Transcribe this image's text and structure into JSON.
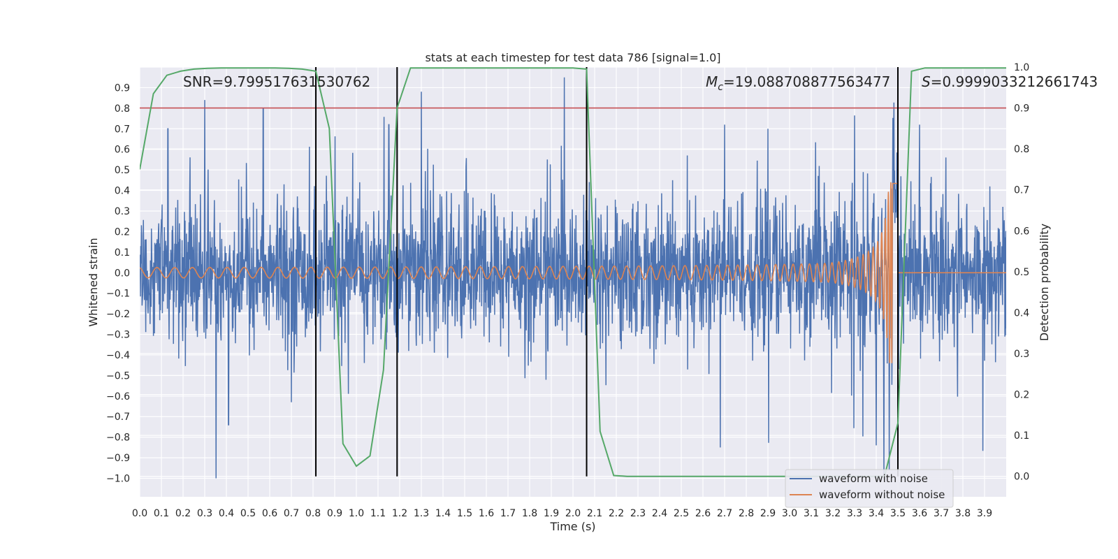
{
  "chart_data": {
    "type": "line",
    "title": "stats at each timestep for test data 786 [signal=1.0]",
    "xlabel": "Time (s)",
    "ylabel": "Whitened strain",
    "y2label": "Detection probability",
    "xlim": [
      0.0,
      4.0
    ],
    "ylim": [
      -1.09,
      1.0
    ],
    "y2lim": [
      -0.05,
      1.0
    ],
    "xticks": [
      0.0,
      0.1,
      0.2,
      0.3,
      0.4,
      0.5,
      0.6,
      0.7,
      0.8,
      0.9,
      1.0,
      1.1,
      1.2,
      1.3,
      1.4,
      1.5,
      1.6,
      1.7,
      1.8,
      1.9,
      2.0,
      2.1,
      2.2,
      2.3,
      2.4,
      2.5,
      2.6,
      2.7,
      2.8,
      2.9,
      3.0,
      3.1,
      3.2,
      3.3,
      3.4,
      3.5,
      3.6,
      3.7,
      3.8,
      3.9
    ],
    "yticks": [
      -1.0,
      -0.9,
      -0.8,
      -0.7,
      -0.6,
      -0.5,
      -0.4,
      -0.3,
      -0.2,
      -0.1,
      0.0,
      0.1,
      0.2,
      0.3,
      0.4,
      0.5,
      0.6,
      0.7,
      0.8,
      0.9
    ],
    "y2ticks": [
      0.0,
      0.1,
      0.2,
      0.3,
      0.4,
      0.5,
      0.6,
      0.7,
      0.8,
      0.9,
      1.0
    ],
    "grid": true,
    "legend_position": "lower-right",
    "annotations": {
      "snr": "SNR=9.799517631530762",
      "mc_symbol": "M",
      "mc_sub": "c",
      "mc_value": "=19.088708877563477",
      "s_symbol": "S",
      "s_value": "=0.9999033212661743"
    },
    "threshold": {
      "y2": 0.9,
      "color": "#c44e52"
    },
    "vlines": [
      0.813,
      1.188,
      2.063,
      3.5
    ],
    "series": [
      {
        "name": "waveform with noise",
        "color": "#4c72b0",
        "kind": "noise",
        "noise_std": 0.17,
        "spike_y": [
          0.84,
          0.8,
          0.7,
          0.72,
          0.88,
          0.72,
          0.7,
          0.72,
          -0.74,
          -0.63,
          -0.85,
          -0.84,
          -0.96
        ],
        "spike_x": [
          0.3,
          0.57,
          0.13,
          1.15,
          1.3,
          2.7,
          2.9,
          3.6,
          0.41,
          0.7,
          2.68,
          3.4,
          3.46
        ]
      },
      {
        "name": "waveform without noise",
        "color": "#dd8452",
        "kind": "chirp",
        "merger_time": 3.48,
        "peak_amplitude": 0.44,
        "early_amplitude": 0.025
      },
      {
        "name": "",
        "color": "#55a868",
        "axis": "y2",
        "x": [
          0.0,
          0.063,
          0.125,
          0.188,
          0.25,
          0.313,
          0.375,
          0.438,
          0.5,
          0.563,
          0.625,
          0.688,
          0.75,
          0.813,
          0.875,
          0.938,
          1.0,
          1.063,
          1.125,
          1.188,
          1.25,
          1.313,
          1.375,
          1.438,
          1.5,
          1.563,
          1.625,
          1.688,
          1.75,
          1.813,
          1.875,
          1.938,
          2.0,
          2.063,
          2.125,
          2.188,
          2.25,
          2.313,
          2.375,
          2.438,
          2.5,
          2.563,
          2.625,
          2.688,
          2.75,
          2.813,
          2.875,
          2.938,
          3.0,
          3.063,
          3.125,
          3.188,
          3.25,
          3.313,
          3.375,
          3.438,
          3.5,
          3.563,
          3.625,
          3.688,
          3.75,
          3.813,
          3.875,
          3.938,
          4.0
        ],
        "y": [
          0.75,
          0.935,
          0.98,
          0.99,
          0.995,
          0.997,
          0.998,
          0.998,
          0.998,
          0.998,
          0.998,
          0.997,
          0.995,
          0.99,
          0.85,
          0.08,
          0.025,
          0.05,
          0.26,
          0.9,
          0.998,
          0.998,
          0.998,
          0.998,
          0.998,
          0.998,
          0.998,
          0.998,
          0.998,
          0.998,
          0.998,
          0.998,
          0.998,
          0.995,
          0.11,
          0.002,
          0.0,
          0.0,
          0.0,
          0.0,
          0.0,
          0.0,
          0.0,
          0.0,
          0.0,
          0.0,
          0.0,
          0.0,
          0.0,
          0.0,
          0.0,
          0.0,
          0.0,
          0.0,
          0.0,
          0.0,
          0.13,
          0.99,
          0.998,
          0.998,
          0.998,
          0.998,
          0.998,
          0.998,
          0.998
        ]
      }
    ]
  }
}
